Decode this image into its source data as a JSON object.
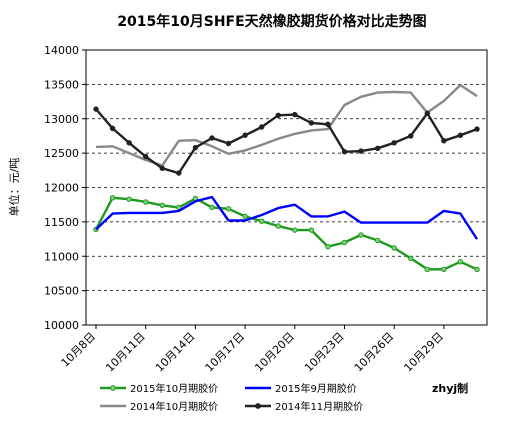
{
  "chart_data": {
    "type": "line",
    "title": "2015年10月SHFE天然橡胶期货价格对比走势图",
    "ylabel": "单位：元/吨",
    "xlabel": "",
    "ylim": [
      10000,
      14000
    ],
    "yticks": [
      10000,
      10500,
      11000,
      11500,
      12000,
      12500,
      13000,
      13500,
      14000
    ],
    "grid": "dashed horizontal",
    "legend_position": "bottom",
    "credit": "zhyj制",
    "x": [
      "10月8日",
      "10月9日",
      "10月10日",
      "10月11日",
      "10月12日",
      "10月13日",
      "10月14日",
      "10月15日",
      "10月16日",
      "10月17日",
      "10月18日",
      "10月19日",
      "10月20日",
      "10月21日",
      "10月22日",
      "10月23日",
      "10月24日",
      "10月25日",
      "10月26日",
      "10月27日",
      "10月28日",
      "10月29日",
      "10月30日",
      "10月31日"
    ],
    "xtick_labels": [
      "10月8日",
      "10月11日",
      "10月14日",
      "10月17日",
      "10月20日",
      "10月23日",
      "10月26日",
      "10月29日"
    ],
    "series": [
      {
        "name": "2015年10月期胶价",
        "color": "#1f9a1f",
        "marker": "circle",
        "values": [
          11390,
          11850,
          11830,
          11790,
          11740,
          11710,
          11840,
          11710,
          11690,
          11580,
          11510,
          11440,
          11380,
          11380,
          11140,
          11200,
          11310,
          11230,
          11120,
          10970,
          10810,
          10810,
          10920,
          10810
        ]
      },
      {
        "name": "2015年9月期胶价",
        "color": "#0000ff",
        "marker": "none",
        "values": [
          11390,
          11620,
          11630,
          11630,
          11630,
          11660,
          11800,
          11860,
          11520,
          11520,
          11600,
          11700,
          11750,
          11580,
          11580,
          11650,
          11490,
          11490,
          11490,
          11490,
          11490,
          11660,
          11620,
          11250
        ]
      },
      {
        "name": "2014年10月期胶价",
        "color": "#888888",
        "marker": "none",
        "values": [
          12590,
          12600,
          12500,
          12400,
          12320,
          12680,
          12690,
          12600,
          12490,
          12540,
          12620,
          12710,
          12780,
          12830,
          12850,
          13200,
          13320,
          13380,
          13390,
          13380,
          13090,
          13260,
          13490,
          13330
        ]
      },
      {
        "name": "2014年11月期胶价",
        "color": "#222222",
        "marker": "circle",
        "values": [
          13140,
          12860,
          12650,
          12450,
          12280,
          12210,
          12580,
          12720,
          12640,
          12760,
          12880,
          13050,
          13060,
          12940,
          12920,
          12520,
          12530,
          12570,
          12650,
          12750,
          13080,
          12680,
          12760,
          12850
        ]
      }
    ]
  }
}
